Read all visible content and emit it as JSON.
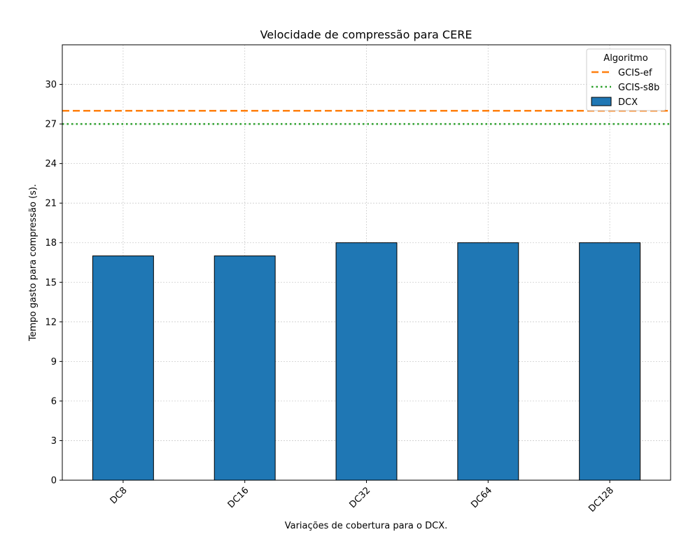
{
  "chart_data": {
    "type": "bar",
    "title": "Velocidade de compressão para  CERE",
    "xlabel": "Variações de cobertura para o DCX.",
    "ylabel": "Tempo gasto para compressão (s).",
    "categories": [
      "DC8",
      "DC16",
      "DC32",
      "DC64",
      "DC128"
    ],
    "series": [
      {
        "name": "DCX",
        "values": [
          17,
          17,
          18,
          18,
          18
        ],
        "color": "#1f77b4"
      }
    ],
    "reference_lines": [
      {
        "name": "GCIS-ef",
        "value": 28,
        "style": "dashed",
        "color": "#ff7f0e"
      },
      {
        "name": "GCIS-s8b",
        "value": 27,
        "style": "dotted",
        "color": "#2ca02c"
      }
    ],
    "yticks": [
      0,
      3,
      6,
      9,
      12,
      15,
      18,
      21,
      24,
      27,
      30
    ],
    "ylim": [
      0,
      33
    ],
    "grid": true,
    "legend": {
      "title": "Algoritmo",
      "placement": "top-right"
    }
  }
}
